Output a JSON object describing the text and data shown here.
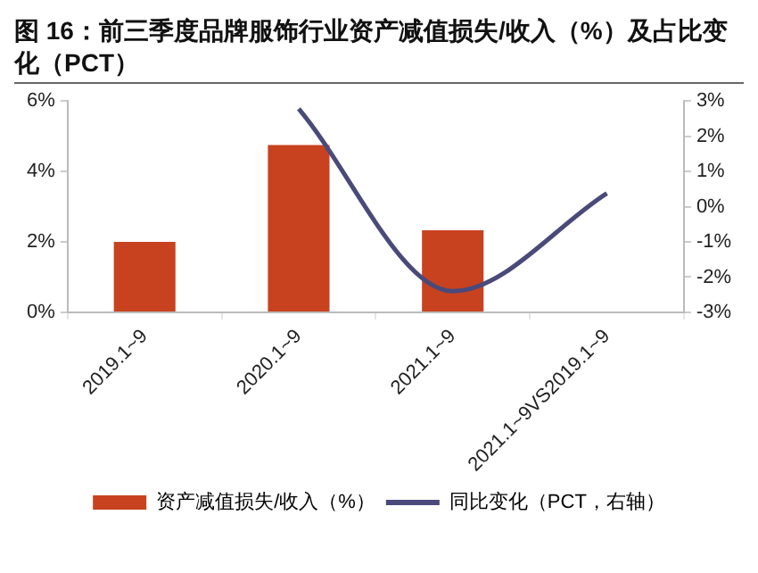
{
  "chart_data": {
    "type": "bar",
    "title": "图 16：前三季度品牌服饰行业资产减值损失/收入（%）及占比变化（PCT）",
    "categories": [
      "2019.1~9",
      "2020.1~9",
      "2021.1~9",
      "2021.1~9VS2019.1~9"
    ],
    "series": [
      {
        "name": "资产减值损失/收入（%）",
        "color": "#c8421f",
        "values": [
          2.0,
          4.75,
          2.33,
          null
        ]
      },
      {
        "name": "同比变化（PCT，右轴）",
        "type": "line",
        "axis": "y2",
        "color": "#4a4a7a",
        "values": [
          null,
          2.78,
          -2.4,
          0.38
        ]
      }
    ],
    "ylim": [
      0,
      6
    ],
    "yticks": [
      {
        "value": 0,
        "label": "0%"
      },
      {
        "value": 2,
        "label": "2%"
      },
      {
        "value": 4,
        "label": "4%"
      },
      {
        "value": 6,
        "label": "6%"
      }
    ],
    "y2lim": [
      -3,
      3
    ],
    "y2ticks": [
      {
        "value": -3,
        "label": "-3%"
      },
      {
        "value": -2,
        "label": "-2%"
      },
      {
        "value": -1,
        "label": "-1%"
      },
      {
        "value": 0,
        "label": "0%"
      },
      {
        "value": 1,
        "label": "1%"
      },
      {
        "value": 2,
        "label": "2%"
      },
      {
        "value": 3,
        "label": "3%"
      }
    ],
    "grid": false,
    "legend": "bottom",
    "marker": "none"
  }
}
